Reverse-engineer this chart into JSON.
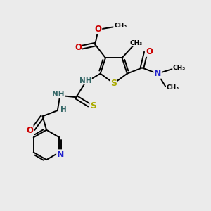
{
  "bg_color": "#ebebeb",
  "atom_colors": {
    "C": "#000000",
    "N": "#2222cc",
    "O": "#cc0000",
    "S": "#aaaa00",
    "H": "#336666"
  },
  "bond_color": "#000000",
  "bond_lw": 1.4,
  "font_size": 7.5,
  "fig_size": [
    3.0,
    3.0
  ],
  "dpi": 100,
  "xlim": [
    0,
    10
  ],
  "ylim": [
    0,
    10
  ]
}
